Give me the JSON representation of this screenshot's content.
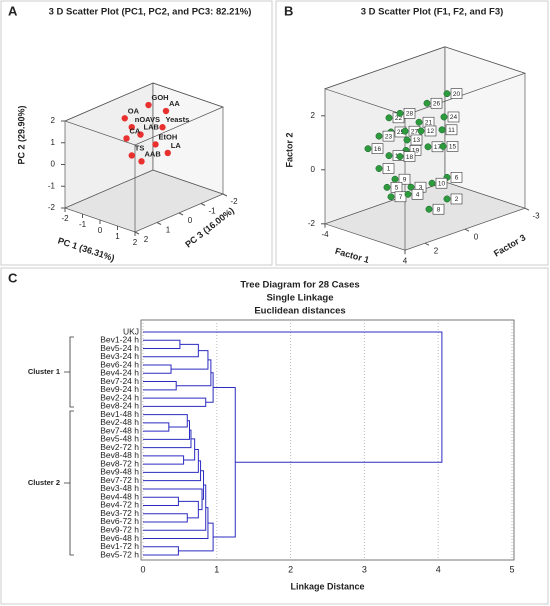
{
  "chart_data": [
    {
      "type": "scatter3d",
      "panel_label": "A",
      "title": "3 D Scatter Plot (PC1, PC2, and PC3: 82.21%)",
      "xlabel": "PC 1 (36.31%)",
      "ylabel": "PC 2 (29.90%)",
      "zlabel": "PC 3 (16.00%)",
      "xlim": [
        -2,
        2
      ],
      "ylim": [
        -2,
        2
      ],
      "zlim": [
        -2,
        2
      ],
      "xticks": [
        -2,
        -1,
        0,
        1,
        2
      ],
      "yticks": [
        -2,
        -1,
        0,
        1,
        2
      ],
      "zticks": [
        -2,
        -1,
        0,
        1,
        2
      ],
      "color": "#e8312f",
      "point_labels": [
        "GOH",
        "AA",
        "OA",
        "nOAVS",
        "Yeasts",
        "LAB",
        "CA",
        "EtOH",
        "LA",
        "TS",
        "AAB"
      ],
      "x": [
        -1.0,
        0.0,
        -1.1,
        -0.7,
        -0.2,
        -0.2,
        -1.0,
        -0.6,
        0.1,
        -0.7,
        -1.4
      ],
      "y": [
        1.7,
        1.7,
        1.5,
        1.2,
        0.9,
        1.0,
        0.6,
        0.0,
        -0.2,
        -0.1,
        -1.0
      ],
      "z": [
        -1,
        -1,
        0,
        0,
        -1,
        0,
        0,
        -1,
        -1,
        0,
        -1
      ]
    },
    {
      "type": "scatter3d",
      "panel_label": "B",
      "title": "3 D Scatter Plot (F1, F2, and F3)",
      "xlabel": "Factor 1",
      "ylabel": "Factor 2",
      "zlabel": "Factor 3",
      "xlim": [
        -4,
        4
      ],
      "ylim": [
        -2,
        3
      ],
      "zlim": [
        -3,
        3
      ],
      "xticks": [
        -4,
        4
      ],
      "yticks": [
        -2,
        0,
        2
      ],
      "zticks": [
        -3,
        0,
        2
      ],
      "color": "#2e9a3e",
      "point_labels": [
        "20",
        "26",
        "24",
        "22",
        "28",
        "21",
        "25",
        "27",
        "12",
        "11",
        "23",
        "13",
        "17",
        "15",
        "19",
        "16",
        "14",
        "18",
        "1",
        "9",
        "6",
        "5",
        "10",
        "3",
        "7",
        "4",
        "2",
        "8"
      ],
      "x": [
        2.2,
        0.2,
        1.9,
        -1.6,
        -0.5,
        -0.6,
        -1.4,
        0.0,
        -0.4,
        1.7,
        -2.6,
        0.2,
        0.3,
        1.8,
        0.1,
        -3.7,
        -1.6,
        -0.5,
        -2.6,
        -1.0,
        2.2,
        -1.8,
        0.7,
        0.6,
        -1.4,
        0.3,
        2.2,
        0.4
      ],
      "y": [
        2.8,
        2.2,
        1.9,
        1.7,
        2.0,
        1.4,
        1.2,
        1.4,
        1.1,
        1.4,
        0.9,
        1.1,
        0.6,
        0.8,
        0.7,
        0.3,
        0.3,
        0.4,
        -0.3,
        -0.5,
        -0.3,
        -0.9,
        -0.7,
        -0.6,
        -1.2,
        -0.9,
        -1.1,
        -1.7
      ],
      "z": [
        0,
        0,
        0,
        1,
        1,
        0,
        1,
        1,
        0,
        0,
        1,
        1,
        0,
        0,
        1,
        1,
        1,
        1,
        1,
        1,
        0,
        1,
        0,
        1,
        1,
        1,
        0,
        0
      ]
    },
    {
      "type": "dendrogram",
      "panel_label": "C",
      "title": "Tree Diagram for 28 Cases",
      "subtitles": [
        "Single Linkage",
        "Euclidean distances"
      ],
      "xlabel": "Linkage Distance",
      "xlim": [
        0,
        5
      ],
      "xticks": [
        0,
        1,
        2,
        3,
        4,
        5
      ],
      "grid": true,
      "color": "#2b2bc0",
      "annotations": [
        "Cluster 1",
        "Cluster 2"
      ],
      "leaves": [
        "UKJ",
        "Bev1-24 h",
        "Bev5-24 h",
        "Bev3-24 h",
        "Bev6-24 h",
        "Bev4-24 h",
        "Bev7-24 h",
        "Bev9-24 h",
        "Bev2-24 h",
        "Bev8-24 h",
        "Bev1-48 h",
        "Bev2-48 h",
        "Bev7-48 h",
        "Bev5-48 h",
        "Bev2-72 h",
        "Bev8-48 h",
        "Bev8-72 h",
        "Bev9-48 h",
        "Bev7-72 h",
        "Bev3-48 h",
        "Bev4-48 h",
        "Bev4-72 h",
        "Bev3-72 h",
        "Bev6-72 h",
        "Bev9-72 h",
        "Bev6-48 h",
        "Bev1-72 h",
        "Bev5-72 h"
      ],
      "merges": [
        [
          1,
          2,
          0.5
        ],
        [
          4,
          5,
          0.38
        ],
        [
          28,
          3,
          0.75
        ],
        [
          6,
          7,
          0.45
        ],
        [
          29,
          30,
          0.88
        ],
        [
          32,
          31,
          0.92
        ],
        [
          8,
          9,
          0.85
        ],
        [
          33,
          34,
          0.95
        ],
        [
          11,
          12,
          0.35
        ],
        [
          10,
          36,
          0.6
        ],
        [
          37,
          13,
          0.63
        ],
        [
          38,
          14,
          0.65
        ],
        [
          15,
          16,
          0.55
        ],
        [
          39,
          40,
          0.7
        ],
        [
          41,
          17,
          0.75
        ],
        [
          42,
          18,
          0.78
        ],
        [
          20,
          21,
          0.48
        ],
        [
          22,
          23,
          0.6
        ],
        [
          44,
          45,
          0.75
        ],
        [
          19,
          46,
          0.8
        ],
        [
          43,
          47,
          0.82
        ],
        [
          48,
          24,
          0.85
        ],
        [
          49,
          25,
          0.88
        ],
        [
          26,
          27,
          0.48
        ],
        [
          50,
          51,
          0.95
        ],
        [
          35,
          52,
          1.25
        ],
        [
          0,
          53,
          4.05
        ]
      ]
    }
  ]
}
